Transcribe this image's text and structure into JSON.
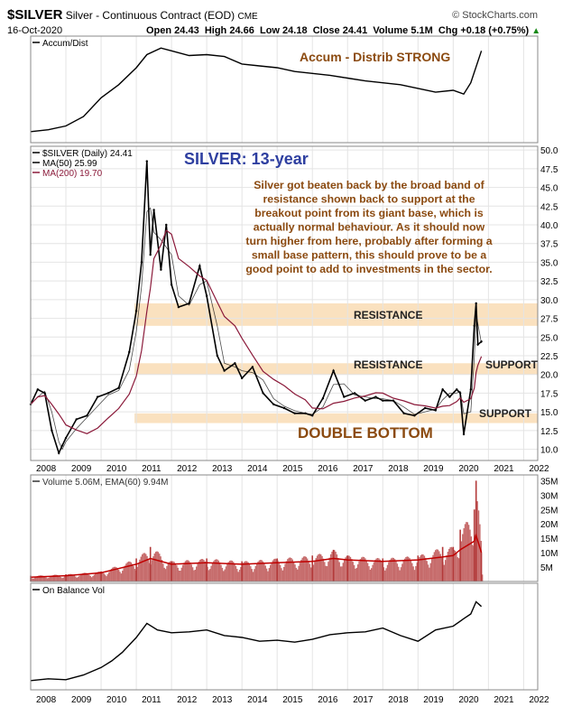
{
  "header": {
    "symbol": "$SILVER",
    "description": "Silver - Continuous Contract (EOD)",
    "exchange": "CME",
    "brand": "© StockCharts.com",
    "date": "16-Oct-2020",
    "open": "Open 24.43",
    "high": "High 24.66",
    "low": "Low 24.18",
    "close": "Close 24.41",
    "volume": "Volume 5.1M",
    "change": "Chg +0.18 (+0.75%)"
  },
  "colors": {
    "price": "#000000",
    "ma50": "#000000",
    "ma200": "#8b1a3a",
    "band": "#f9dcb4",
    "annotation_brown": "#8b4a10",
    "title_blue": "#2e3fa0",
    "volume_fill": "#b33a3a",
    "volume_ema": "#c00000"
  },
  "chart_data": [
    {
      "type": "line",
      "panel": "accum-distrib",
      "legend": [
        "Accum/Dist"
      ],
      "annotation": "Accum - Distrib STRONG",
      "x": [
        2008.0,
        2008.5,
        2009.0,
        2009.5,
        2010.0,
        2010.5,
        2011.0,
        2011.3,
        2011.7,
        2012.0,
        2012.5,
        2013.0,
        2013.5,
        2014.0,
        2014.5,
        2015.0,
        2015.5,
        2016.0,
        2016.5,
        2017.0,
        2017.5,
        2018.0,
        2018.5,
        2019.0,
        2019.5,
        2020.0,
        2020.3,
        2020.5,
        2020.8
      ],
      "y": [
        6,
        8,
        12,
        22,
        42,
        56,
        74,
        88,
        95,
        92,
        87,
        88,
        86,
        78,
        76,
        74,
        70,
        68,
        66,
        63,
        60,
        58,
        56,
        52,
        48,
        50,
        46,
        58,
        92
      ]
    },
    {
      "type": "line",
      "panel": "price",
      "legend": [
        "$SILVER (Daily) 24.41",
        "MA(50) 25.99",
        "MA(200) 19.70"
      ],
      "title": "SILVER: 13-year",
      "annotations": [
        "Silver got beaten back by the broad band of resistance shown back to support at the breakout  point from its giant base, which is actually normal behaviour. As it should now turn higher from here, probably after forming a small base pattern, this should prove to be a good point to add to investments in the sector.",
        "RESISTANCE",
        "RESISTANCE",
        "SUPPORT",
        "SUPPORT",
        "DOUBLE BOTTOM"
      ],
      "yticks": [
        10.0,
        12.5,
        15.0,
        17.5,
        20.0,
        22.5,
        25.0,
        27.5,
        30.0,
        32.5,
        35.0,
        37.5,
        40.0,
        42.5,
        45.0,
        47.5,
        50.0
      ],
      "ylim": [
        8.5,
        50.5
      ],
      "xlim": [
        2008.0,
        2022.4
      ],
      "bands": [
        [
          26.5,
          29.5
        ],
        [
          20.0,
          21.5
        ],
        [
          13.5,
          14.8
        ]
      ],
      "x": [
        2008.0,
        2008.2,
        2008.4,
        2008.6,
        2008.8,
        2008.9,
        2009.0,
        2009.3,
        2009.6,
        2009.9,
        2010.2,
        2010.5,
        2010.8,
        2011.0,
        2011.15,
        2011.3,
        2011.4,
        2011.5,
        2011.7,
        2011.85,
        2012.0,
        2012.2,
        2012.5,
        2012.8,
        2013.0,
        2013.3,
        2013.5,
        2013.8,
        2014.0,
        2014.3,
        2014.6,
        2014.9,
        2015.2,
        2015.5,
        2015.8,
        2016.0,
        2016.3,
        2016.6,
        2016.9,
        2017.2,
        2017.5,
        2017.8,
        2018.0,
        2018.3,
        2018.6,
        2018.9,
        2019.2,
        2019.5,
        2019.7,
        2019.9,
        2020.1,
        2020.2,
        2020.3,
        2020.5,
        2020.6,
        2020.65,
        2020.7,
        2020.8
      ],
      "y": [
        16.0,
        18.0,
        17.5,
        12.5,
        9.5,
        10.5,
        11.5,
        14.0,
        14.5,
        17.0,
        17.5,
        18.2,
        23.0,
        28.5,
        35.0,
        48.5,
        36.0,
        42.0,
        34.0,
        40.0,
        32.0,
        29.0,
        29.5,
        34.5,
        30.5,
        22.5,
        20.5,
        21.5,
        19.5,
        21.0,
        17.5,
        16.0,
        15.5,
        14.8,
        14.8,
        14.5,
        16.8,
        20.5,
        17.0,
        17.5,
        16.5,
        17.0,
        16.5,
        16.5,
        14.8,
        14.5,
        15.5,
        15.2,
        18.0,
        17.0,
        18.0,
        17.5,
        12.0,
        18.0,
        26.5,
        29.5,
        24.0,
        24.4
      ]
    },
    {
      "type": "bar",
      "panel": "volume",
      "legend": [
        "Volume 5.06M, EMA(60) 9.94M"
      ],
      "yticks": [
        "5M",
        "10M",
        "15M",
        "20M",
        "25M",
        "30M",
        "35M"
      ],
      "ylim": [
        0,
        37
      ],
      "x": [
        2008.0,
        2009.0,
        2010.0,
        2011.0,
        2011.4,
        2012.0,
        2013.0,
        2014.0,
        2015.0,
        2016.0,
        2016.6,
        2017.0,
        2018.0,
        2019.0,
        2019.7,
        2020.0,
        2020.2,
        2020.6,
        2020.65,
        2020.8
      ],
      "y": [
        2,
        2.5,
        3.5,
        8,
        12,
        7,
        8,
        7,
        8,
        9,
        11,
        9,
        8,
        9,
        12,
        12,
        18,
        25,
        35,
        10
      ],
      "ema": [
        1.5,
        2,
        3,
        6,
        8,
        6,
        6.5,
        6,
        6.5,
        7,
        8,
        7.5,
        7,
        7.5,
        8.5,
        9,
        11,
        14,
        16,
        10
      ]
    },
    {
      "type": "line",
      "panel": "on-balance-volume",
      "legend": [
        "On Balance Vol"
      ],
      "x": [
        2008.0,
        2008.5,
        2009.0,
        2009.5,
        2010.0,
        2010.3,
        2010.6,
        2011.0,
        2011.3,
        2011.6,
        2012.0,
        2012.5,
        2013.0,
        2013.5,
        2014.0,
        2014.5,
        2015.0,
        2015.5,
        2016.0,
        2016.5,
        2017.0,
        2017.5,
        2018.0,
        2018.5,
        2019.0,
        2019.5,
        2020.0,
        2020.3,
        2020.5,
        2020.65,
        2020.8
      ],
      "y": [
        4,
        6,
        5,
        10,
        18,
        25,
        34,
        50,
        65,
        58,
        55,
        56,
        58,
        52,
        50,
        46,
        47,
        45,
        48,
        53,
        55,
        56,
        60,
        52,
        46,
        58,
        62,
        70,
        75,
        88,
        83
      ]
    }
  ],
  "xaxis": {
    "ticks": [
      "2008",
      "2009",
      "2010",
      "2011",
      "2012",
      "2013",
      "2014",
      "2015",
      "2016",
      "2017",
      "2018",
      "2019",
      "2020",
      "2021",
      "2022"
    ]
  }
}
